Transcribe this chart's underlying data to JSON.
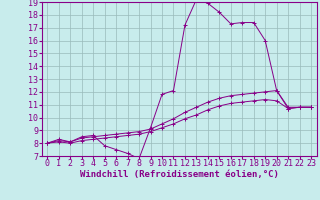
{
  "xlabel": "Windchill (Refroidissement éolien,°C)",
  "xlim": [
    -0.5,
    23.5
  ],
  "ylim": [
    7,
    19
  ],
  "xticks": [
    0,
    1,
    2,
    3,
    4,
    5,
    6,
    7,
    8,
    9,
    10,
    11,
    12,
    13,
    14,
    15,
    16,
    17,
    18,
    19,
    20,
    21,
    22,
    23
  ],
  "yticks": [
    7,
    8,
    9,
    10,
    11,
    12,
    13,
    14,
    15,
    16,
    17,
    18,
    19
  ],
  "background_color": "#c8ecec",
  "line_color": "#880088",
  "grid_color": "#99bbbb",
  "lines": [
    {
      "x": [
        0,
        1,
        2,
        3,
        4,
        5,
        6,
        7,
        8,
        9,
        10,
        11,
        12,
        13,
        14,
        15,
        16,
        17,
        18,
        19,
        20,
        21,
        22,
        23
      ],
      "y": [
        8.0,
        8.3,
        8.1,
        8.5,
        8.6,
        7.8,
        7.5,
        7.2,
        6.8,
        9.2,
        11.8,
        12.1,
        17.2,
        19.2,
        18.9,
        18.2,
        17.3,
        17.4,
        17.4,
        16.0,
        12.1,
        10.7,
        10.8,
        10.8
      ]
    },
    {
      "x": [
        0,
        1,
        2,
        3,
        4,
        5,
        6,
        7,
        8,
        9,
        10,
        11,
        12,
        13,
        14,
        15,
        16,
        17,
        18,
        19,
        20,
        21,
        22,
        23
      ],
      "y": [
        8.0,
        8.2,
        8.1,
        8.4,
        8.5,
        8.6,
        8.7,
        8.8,
        8.9,
        9.1,
        9.5,
        9.9,
        10.4,
        10.8,
        11.2,
        11.5,
        11.7,
        11.8,
        11.9,
        12.0,
        12.1,
        10.8,
        10.8,
        10.8
      ]
    },
    {
      "x": [
        0,
        1,
        2,
        3,
        4,
        5,
        6,
        7,
        8,
        9,
        10,
        11,
        12,
        13,
        14,
        15,
        16,
        17,
        18,
        19,
        20,
        21,
        22,
        23
      ],
      "y": [
        8.0,
        8.1,
        8.0,
        8.2,
        8.3,
        8.4,
        8.5,
        8.6,
        8.7,
        8.9,
        9.2,
        9.5,
        9.9,
        10.2,
        10.6,
        10.9,
        11.1,
        11.2,
        11.3,
        11.4,
        11.3,
        10.7,
        10.8,
        10.8
      ]
    }
  ],
  "font_size_xlabel": 6.5,
  "font_size_ticks": 6,
  "marker": "+"
}
